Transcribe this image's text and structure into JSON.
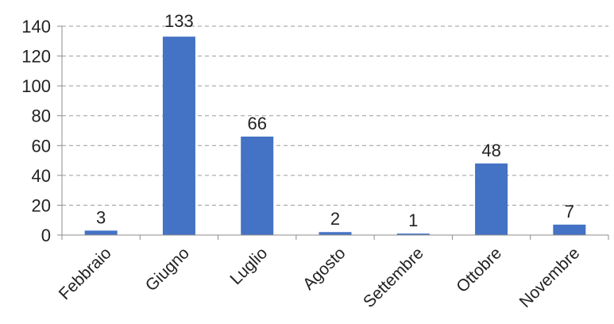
{
  "chart_data": {
    "type": "bar",
    "categories": [
      "Febbraio",
      "Giugno",
      "Luglio",
      "Agosto",
      "Settembre",
      "Ottobre",
      "Novembre"
    ],
    "values": [
      3,
      133,
      66,
      2,
      1,
      48,
      7
    ],
    "data_labels": [
      "3",
      "133",
      "66",
      "2",
      "1",
      "48",
      "7"
    ],
    "ylim": [
      0,
      140
    ],
    "yticks": [
      0,
      20,
      40,
      60,
      80,
      100,
      120,
      140
    ],
    "grid": true,
    "grid_style": "dashed",
    "legend": "none",
    "colors": {
      "bar": "#4472C4",
      "grid": "#9a9a9a",
      "axis": "#8c8c8c",
      "text": "#222222"
    }
  }
}
